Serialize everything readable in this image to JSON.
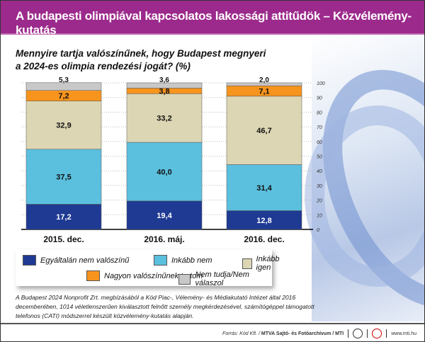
{
  "title": "A budapesti olimpiával kapcsolatos lakossági attitűdök – Közvélemény-kutatás",
  "question_line1": "Mennyire tartja valószínűnek, hogy Budapest megnyeri",
  "question_line2": "a 2024-es olimpia rendezési jogát? (%)",
  "chart_data": {
    "type": "bar",
    "stacked": true,
    "categories": [
      "2015. dec.",
      "2016. máj.",
      "2016. dec."
    ],
    "series": [
      {
        "name": "Egyáltalán nem valószínű",
        "color": "#1f3a93",
        "values": [
          17.2,
          19.4,
          12.8
        ],
        "labels": [
          "17,2",
          "19,4",
          "12,8"
        ]
      },
      {
        "name": "Inkább nem",
        "color": "#5bc0de",
        "values": [
          37.5,
          40.0,
          31.4
        ],
        "labels": [
          "37,5",
          "40,0",
          "31,4"
        ]
      },
      {
        "name": "Inkább igen",
        "color": "#dcd6b4",
        "values": [
          32.9,
          33.2,
          46.7
        ],
        "labels": [
          "32,9",
          "33,2",
          "46,7"
        ]
      },
      {
        "name": "Nagyon valószínűnek tartom",
        "color": "#f7941d",
        "values": [
          7.2,
          3.8,
          7.1
        ],
        "labels": [
          "7,2",
          "3,8",
          "7,1"
        ]
      },
      {
        "name": "Nem tudja/Nem válaszol",
        "color": "#c8c8c8",
        "values": [
          5.3,
          3.6,
          2.0
        ],
        "labels": [
          "5,3",
          "3,6",
          "2,0"
        ]
      }
    ],
    "ylim": [
      0,
      100
    ],
    "yticks": [
      "0",
      "10",
      "20",
      "30",
      "40",
      "50",
      "60",
      "70",
      "80",
      "90",
      "100"
    ],
    "grid": true,
    "legend": "bottom"
  },
  "note": "A Budapest 2024 Nonprofit Zrt. megbízásából a Kód Piac-, Vélemény- és Médiakutató Intézet által 2016 decemberében, 1014 véletlenszerűen kiválasztott felnőtt személy megkérdezésével, számítógéppel támogatott telefonos (CATI) módszerrel készült közvélemény-kutatás alapján.",
  "source_prefix": "Forrás: Kód Kft. / ",
  "source_bold": "MTVA Sajtó- és Fotóarchívum / MTI",
  "website": "www.mti.hu"
}
